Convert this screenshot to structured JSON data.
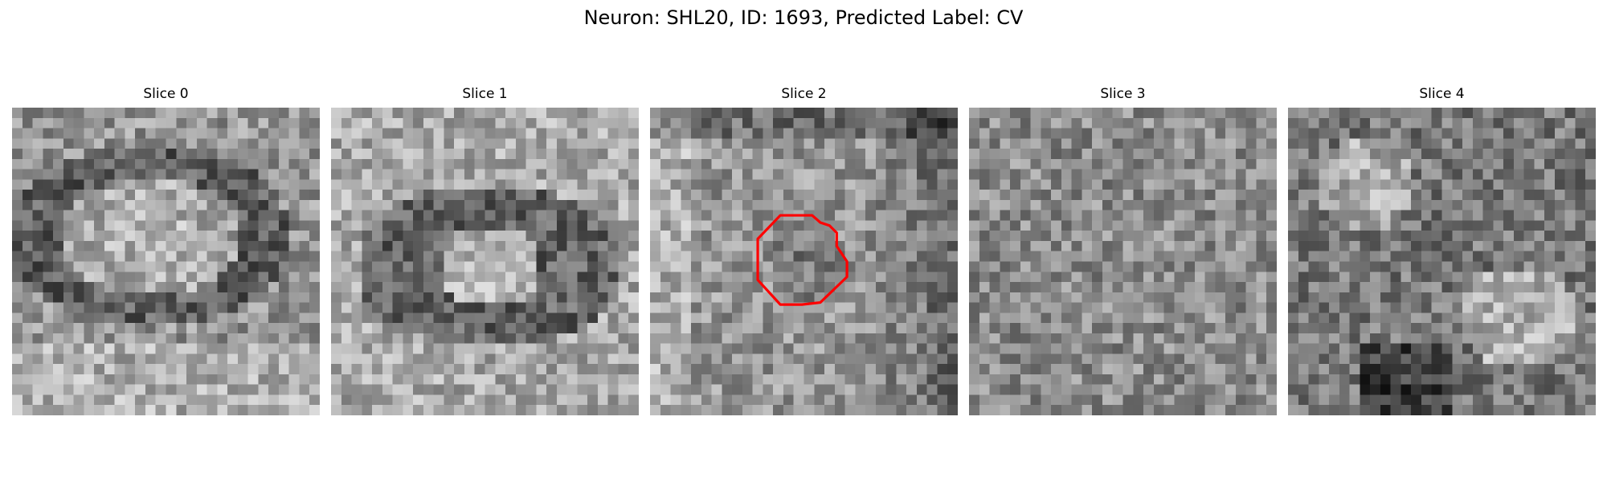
{
  "figure": {
    "title": "Neuron: SHL20, ID: 1693, Predicted Label: CV"
  },
  "panels": [
    {
      "title": "Slice 0",
      "image": "grayscale-microscopy-patch",
      "roi_contour": false
    },
    {
      "title": "Slice 1",
      "image": "grayscale-microscopy-patch",
      "roi_contour": false
    },
    {
      "title": "Slice 2",
      "image": "grayscale-microscopy-patch",
      "roi_contour": true,
      "roi_color": "#ff0000"
    },
    {
      "title": "Slice 3",
      "image": "grayscale-microscopy-patch",
      "roi_contour": false
    },
    {
      "title": "Slice 4",
      "image": "grayscale-microscopy-patch",
      "roi_contour": false
    }
  ]
}
